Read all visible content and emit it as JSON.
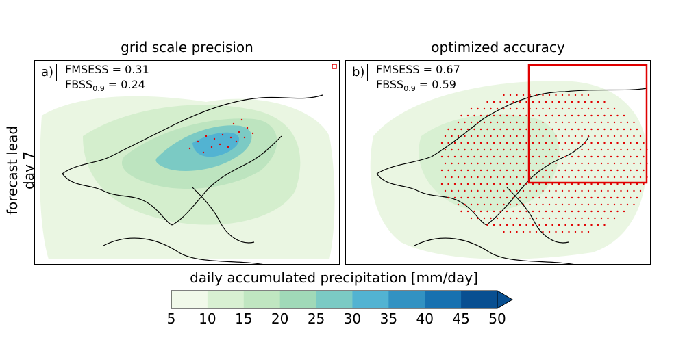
{
  "panels": [
    {
      "title": "grid scale precision",
      "label": "a)",
      "fmsess_label": "FMSESS = 0.31",
      "fbss_prefix": "FBSS",
      "fbss_sub": "0.9",
      "fbss_value": " = 0.24"
    },
    {
      "title": "optimized accuracy",
      "label": "b)",
      "fmsess_label": "FMSESS = 0.67",
      "fbss_prefix": "FBSS",
      "fbss_sub": "0.9",
      "fbss_value": " = 0.59"
    }
  ],
  "row_label": "forecast lead day 7",
  "colorbar": {
    "title": "daily accumulated precipitation [mm/day]",
    "ticks": [
      "5",
      "10",
      "15",
      "20",
      "25",
      "30",
      "35",
      "40",
      "45",
      "50"
    ],
    "colors": [
      "#f1f9ea",
      "#d8f0d2",
      "#c0e6c1",
      "#a0d9b8",
      "#7bcac4",
      "#52b3d2",
      "#3292c2",
      "#1771b0",
      "#084f91"
    ],
    "extend": "max"
  },
  "chart_data": {
    "type": "heatmap",
    "variable": "daily accumulated precipitation",
    "units": "mm/day",
    "levels": [
      5,
      10,
      15,
      20,
      25,
      30,
      35,
      40,
      45,
      50
    ],
    "panels": [
      {
        "title": "grid scale precision",
        "FMSESS": 0.31,
        "FBSS_0.9": 0.24
      },
      {
        "title": "optimized accuracy",
        "FMSESS": 0.67,
        "FBSS_0.9": 0.59
      }
    ],
    "hatching": "red dots",
    "highlight_box": "red rectangle in panel b"
  }
}
